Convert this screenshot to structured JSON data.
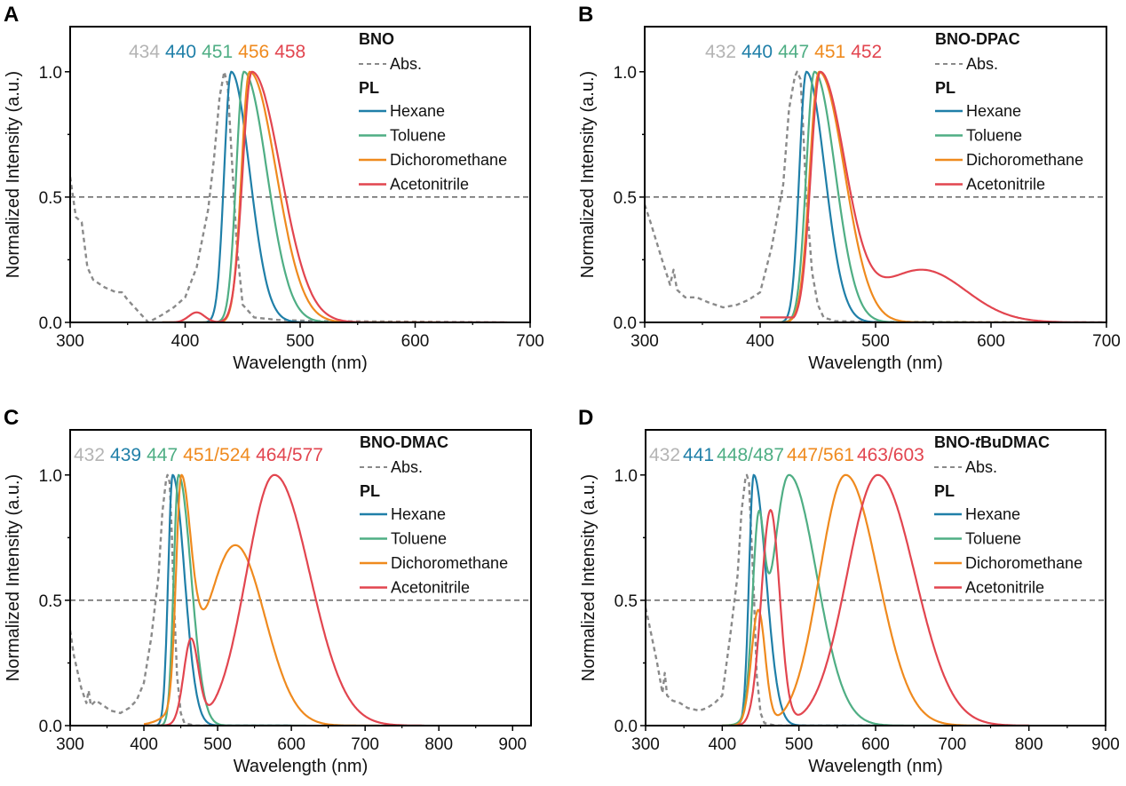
{
  "chart_data": [
    {
      "type": "line",
      "panel": "A",
      "compound": "BNO",
      "xlabel": "Wavelength (nm)",
      "ylabel": "Normalized Intensity (a.u.)",
      "xlim": [
        300,
        700
      ],
      "ylim": [
        0,
        1.18
      ],
      "xticks": [
        300,
        400,
        500,
        600,
        700
      ],
      "yticks": [
        "0.0",
        "0.5",
        "1.0"
      ],
      "reference_line_y": 0.5,
      "grid": false,
      "legend": {
        "placement": "top-right",
        "abs_label": "Abs.",
        "pl_heading": "PL"
      },
      "peak_labels": [
        {
          "text": "434",
          "color": "#b4b4b4"
        },
        {
          "text": "440",
          "color": "#1f7fa8"
        },
        {
          "text": "451",
          "color": "#4fae84"
        },
        {
          "text": "456",
          "color": "#ef8a1e"
        },
        {
          "text": "458",
          "color": "#e2454f"
        }
      ],
      "series": [
        {
          "name": "Abs.",
          "style": "dashed",
          "color": "#8a8a8a",
          "x": [
            300,
            305,
            310,
            315,
            320,
            330,
            340,
            345,
            350,
            360,
            368,
            372,
            380,
            390,
            400,
            410,
            420,
            425,
            430,
            434,
            437,
            440,
            445,
            450,
            460,
            480,
            520,
            600,
            680
          ],
          "y": [
            0.58,
            0.42,
            0.4,
            0.22,
            0.17,
            0.14,
            0.12,
            0.12,
            0.09,
            0.04,
            0.0,
            0.01,
            0.03,
            0.06,
            0.1,
            0.22,
            0.45,
            0.65,
            0.9,
            1.0,
            0.95,
            0.7,
            0.3,
            0.07,
            0.02,
            0.01,
            0.005,
            0.003,
            0.0
          ]
        },
        {
          "name": "Hexane",
          "color": "#1f7fa8",
          "peak": 440,
          "shoulders": [],
          "range": [
            380,
            560
          ],
          "width_l": 6,
          "width_r": 16
        },
        {
          "name": "Toluene",
          "color": "#4fae84",
          "peak": 451,
          "shoulders": [],
          "range": [
            380,
            580
          ],
          "width_l": 6.5,
          "width_r": 20
        },
        {
          "name": "Dichoromethane",
          "color": "#ef8a1e",
          "peak": 456,
          "shoulders": [],
          "range": [
            380,
            620
          ],
          "width_l": 7,
          "width_r": 23
        },
        {
          "name": "Acetonitrile",
          "color": "#e2454f",
          "peak": 458,
          "shoulders": [
            {
              "x": 410,
              "y": 0.04,
              "w": 7
            }
          ],
          "range": [
            380,
            680
          ],
          "width_l": 8,
          "width_r": 25
        }
      ]
    },
    {
      "type": "line",
      "panel": "B",
      "compound": "BNO-DPAC",
      "xlabel": "Wavelength (nm)",
      "ylabel": "Normalized Intensity (a.u.)",
      "xlim": [
        300,
        700
      ],
      "ylim": [
        0,
        1.18
      ],
      "xticks": [
        300,
        400,
        500,
        600,
        700
      ],
      "yticks": [
        "0.0",
        "0.5",
        "1.0"
      ],
      "reference_line_y": 0.5,
      "grid": false,
      "legend": {
        "placement": "top-right",
        "abs_label": "Abs.",
        "pl_heading": "PL"
      },
      "peak_labels": [
        {
          "text": "432",
          "color": "#b4b4b4"
        },
        {
          "text": "440",
          "color": "#1f7fa8"
        },
        {
          "text": "447",
          "color": "#4fae84"
        },
        {
          "text": "451",
          "color": "#ef8a1e"
        },
        {
          "text": "452",
          "color": "#e2454f"
        }
      ],
      "series": [
        {
          "name": "Abs.",
          "style": "dashed",
          "color": "#8a8a8a",
          "x": [
            300,
            305,
            315,
            322,
            325,
            328,
            335,
            345,
            355,
            368,
            380,
            390,
            400,
            410,
            420,
            425,
            430,
            432,
            435,
            437,
            440,
            445,
            450,
            455,
            465,
            500,
            600,
            700
          ],
          "y": [
            0.47,
            0.4,
            0.25,
            0.15,
            0.21,
            0.13,
            0.1,
            0.1,
            0.08,
            0.06,
            0.07,
            0.09,
            0.12,
            0.3,
            0.55,
            0.85,
            0.98,
            1.0,
            0.97,
            0.8,
            0.5,
            0.2,
            0.07,
            0.02,
            0.005,
            0.002,
            0.001,
            0.0
          ]
        },
        {
          "name": "Hexane",
          "color": "#1f7fa8",
          "peak": 440,
          "shoulders": [],
          "range": [
            400,
            560
          ],
          "width_l": 6,
          "width_r": 16
        },
        {
          "name": "Toluene",
          "color": "#4fae84",
          "peak": 447,
          "shoulders": [],
          "range": [
            400,
            580
          ],
          "width_l": 7,
          "width_r": 18
        },
        {
          "name": "Dichoromethane",
          "color": "#ef8a1e",
          "peak": 451,
          "shoulders": [],
          "range": [
            400,
            640
          ],
          "width_l": 8,
          "width_r": 22
        },
        {
          "name": "Acetonitrile",
          "color": "#e2454f",
          "peak": 452,
          "shoulders": [
            {
              "x": 540,
              "y": 0.21,
              "w": 38
            }
          ],
          "range": [
            400,
            700
          ],
          "width_l": 8,
          "width_r": 22,
          "baseline": 0.02
        }
      ]
    },
    {
      "type": "line",
      "panel": "C",
      "compound": "BNO-DMAC",
      "xlabel": "Wavelength (nm)",
      "ylabel": "Normalized Intensity (a.u.)",
      "xlim": [
        300,
        925
      ],
      "ylim": [
        0,
        1.18
      ],
      "xticks": [
        300,
        400,
        500,
        600,
        700,
        800,
        900
      ],
      "yticks": [
        "0.0",
        "0.5",
        "1.0"
      ],
      "reference_line_y": 0.5,
      "grid": false,
      "legend": {
        "placement": "top-right",
        "abs_label": "Abs.",
        "pl_heading": "PL"
      },
      "peak_labels": [
        {
          "text": "432",
          "color": "#b4b4b4"
        },
        {
          "text": "439",
          "color": "#1f7fa8"
        },
        {
          "text": "447",
          "color": "#4fae84"
        },
        {
          "text": "451/524",
          "color": "#ef8a1e"
        },
        {
          "text": "464/577",
          "color": "#e2454f"
        }
      ],
      "series": [
        {
          "name": "Abs.",
          "style": "dashed",
          "color": "#8a8a8a",
          "x": [
            300,
            305,
            315,
            322,
            325,
            328,
            335,
            345,
            355,
            368,
            380,
            390,
            400,
            410,
            420,
            425,
            430,
            432,
            435,
            438,
            440,
            445,
            450,
            455,
            470,
            520,
            600
          ],
          "y": [
            0.38,
            0.28,
            0.15,
            0.09,
            0.14,
            0.08,
            0.1,
            0.08,
            0.06,
            0.05,
            0.07,
            0.1,
            0.17,
            0.35,
            0.6,
            0.85,
            0.98,
            1.0,
            0.97,
            0.75,
            0.55,
            0.2,
            0.05,
            0.01,
            0.0,
            0.0,
            0.0
          ]
        },
        {
          "name": "Hexane",
          "color": "#1f7fa8",
          "peak": 439,
          "shoulders": [],
          "range": [
            400,
            600
          ],
          "width_l": 6,
          "width_r": 16
        },
        {
          "name": "Toluene",
          "color": "#4fae84",
          "peak": 447,
          "shoulders": [],
          "range": [
            400,
            620
          ],
          "width_l": 6.5,
          "width_r": 17
        },
        {
          "name": "Dichoromethane",
          "color": "#ef8a1e",
          "peak": 451,
          "shoulders": [
            {
              "x": 524,
              "y": 0.72,
              "w": 40
            }
          ],
          "range": [
            400,
            720
          ],
          "width_l": 7,
          "width_r": 14
        },
        {
          "name": "Acetonitrile",
          "color": "#e2454f",
          "peak": 577,
          "peak_y": 1.0,
          "shoulders": [
            {
              "x": 464,
              "y": 0.34,
              "w": 10
            }
          ],
          "range": [
            400,
            780
          ],
          "width_l": 38,
          "width_r": 48
        }
      ]
    },
    {
      "type": "line",
      "panel": "D",
      "compound": "BNO-tBuDMAC",
      "xlabel": "Wavelength (nm)",
      "ylabel": "Normalized Intensity (a.u.)",
      "xlim": [
        300,
        900
      ],
      "ylim": [
        0,
        1.18
      ],
      "xticks": [
        300,
        400,
        500,
        600,
        700,
        800,
        900
      ],
      "yticks": [
        "0.0",
        "0.5",
        "1.0"
      ],
      "reference_line_y": 0.5,
      "grid": false,
      "legend": {
        "placement": "top-right",
        "abs_label": "Abs.",
        "pl_heading": "PL"
      },
      "peak_labels": [
        {
          "text": "432",
          "color": "#b4b4b4"
        },
        {
          "text": "441",
          "color": "#1f7fa8"
        },
        {
          "text": "448/487",
          "color": "#4fae84"
        },
        {
          "text": "447/561",
          "color": "#ef8a1e"
        },
        {
          "text": "463/603",
          "color": "#e2454f"
        }
      ],
      "series": [
        {
          "name": "Abs.",
          "style": "dashed",
          "color": "#8a8a8a",
          "x": [
            300,
            305,
            315,
            322,
            325,
            328,
            335,
            345,
            355,
            370,
            380,
            390,
            400,
            410,
            420,
            425,
            430,
            432,
            435,
            438,
            441,
            445,
            450,
            455,
            470,
            520,
            600
          ],
          "y": [
            0.47,
            0.4,
            0.25,
            0.13,
            0.21,
            0.12,
            0.1,
            0.09,
            0.07,
            0.06,
            0.07,
            0.09,
            0.12,
            0.35,
            0.6,
            0.85,
            0.98,
            1.0,
            0.97,
            0.75,
            0.55,
            0.2,
            0.05,
            0.01,
            0.0,
            0.0,
            0.0
          ]
        },
        {
          "name": "Hexane",
          "color": "#1f7fa8",
          "peak": 441,
          "shoulders": [],
          "range": [
            400,
            600
          ],
          "width_l": 6,
          "width_r": 16
        },
        {
          "name": "Toluene",
          "color": "#4fae84",
          "peak": 487,
          "peak_y": 1.0,
          "shoulders": [
            {
              "x": 448,
              "y": 0.82,
              "w": 8
            }
          ],
          "range": [
            400,
            700
          ],
          "width_l": 22,
          "width_r": 36
        },
        {
          "name": "Dichoromethane",
          "color": "#ef8a1e",
          "peak": 561,
          "peak_y": 1.0,
          "shoulders": [
            {
              "x": 447,
              "y": 0.46,
              "w": 9
            }
          ],
          "range": [
            400,
            740
          ],
          "width_l": 34,
          "width_r": 42
        },
        {
          "name": "Acetonitrile",
          "color": "#e2454f",
          "peak": 603,
          "peak_y": 1.0,
          "shoulders": [
            {
              "x": 463,
              "y": 0.86,
              "w": 12
            }
          ],
          "range": [
            420,
            800
          ],
          "width_l": 40,
          "width_r": 48
        }
      ]
    }
  ]
}
